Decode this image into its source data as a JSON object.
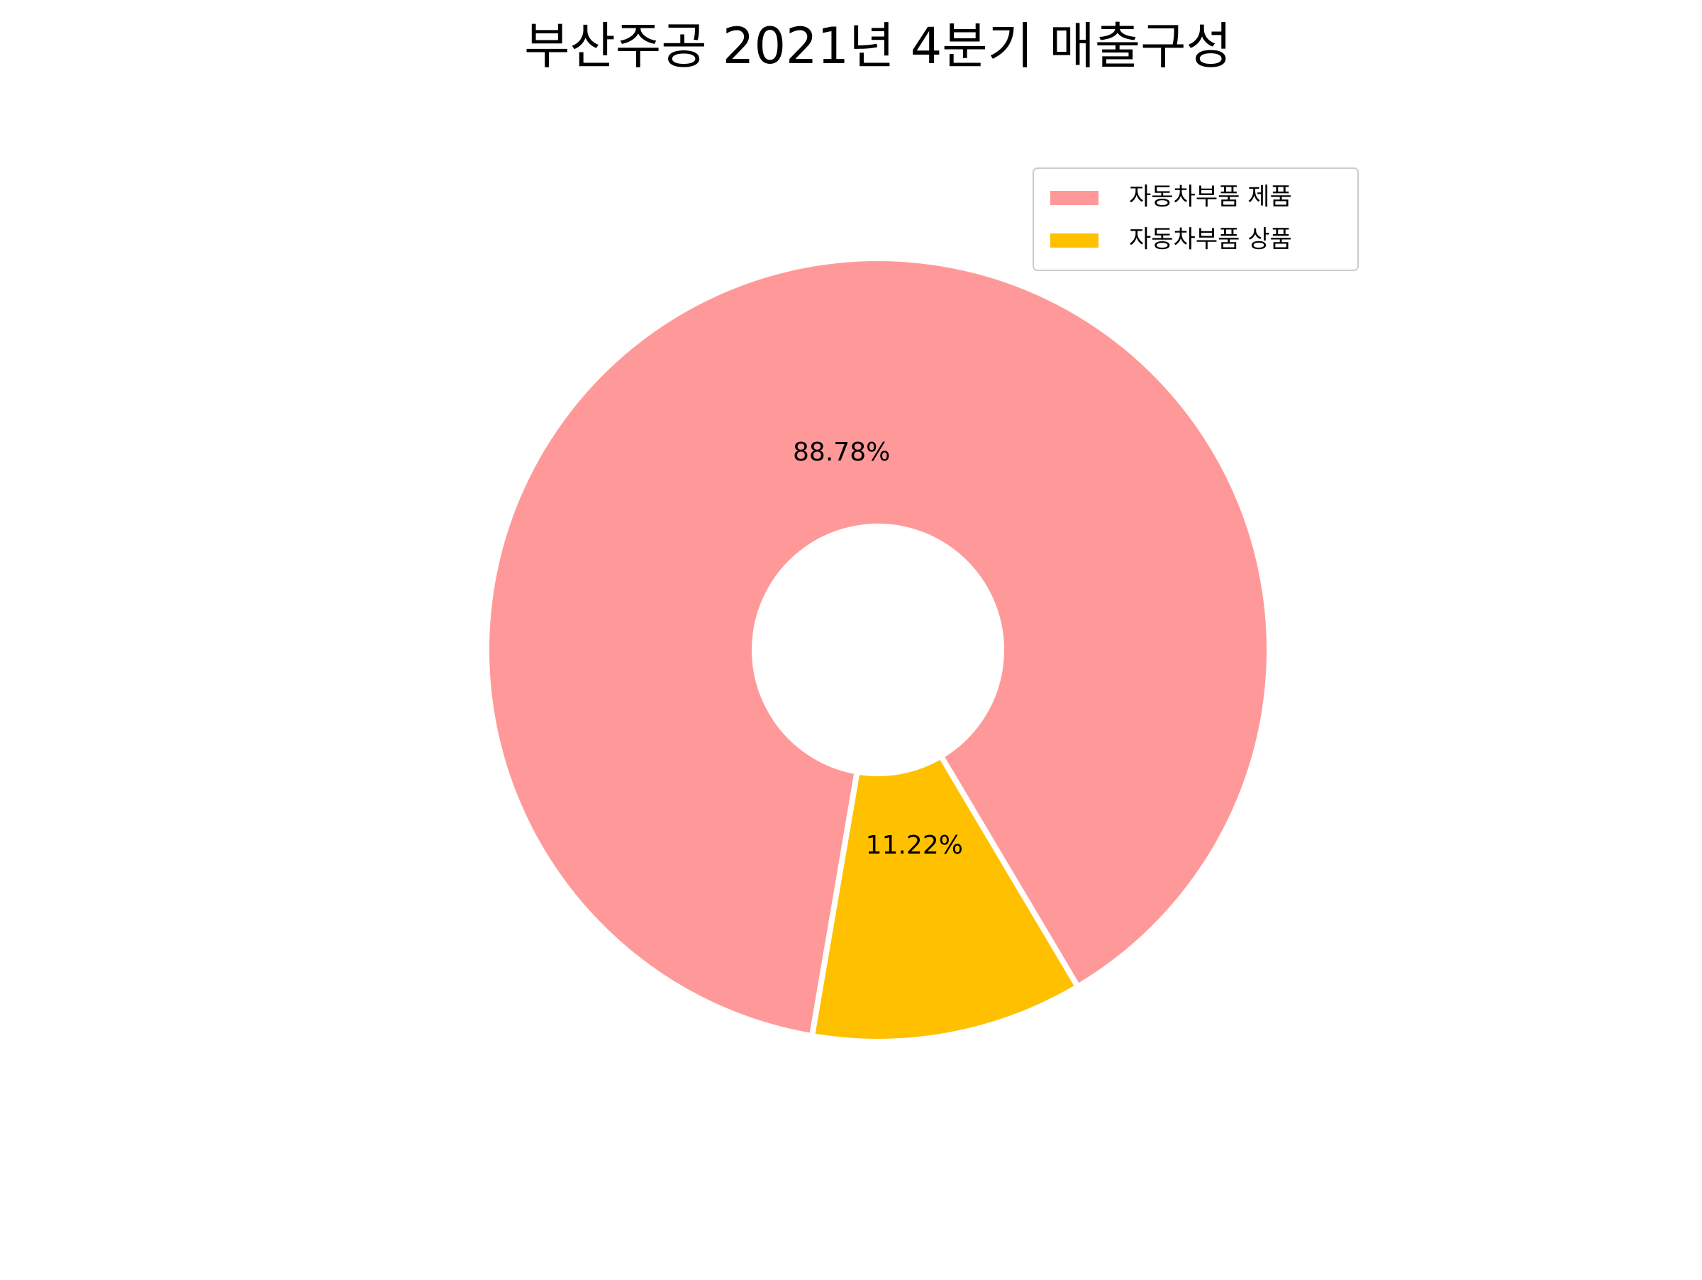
{
  "chart_data": {
    "type": "pie",
    "title": "부산주공 2021년 4분기 매출구성",
    "categories": [
      "자동차부품 제품",
      "자동차부품 상품"
    ],
    "values": [
      88.78,
      11.22
    ],
    "value_labels": [
      "88.78%",
      "11.22%"
    ],
    "colors": [
      "#ff9999",
      "#ffc000"
    ],
    "legend": "upper right"
  }
}
